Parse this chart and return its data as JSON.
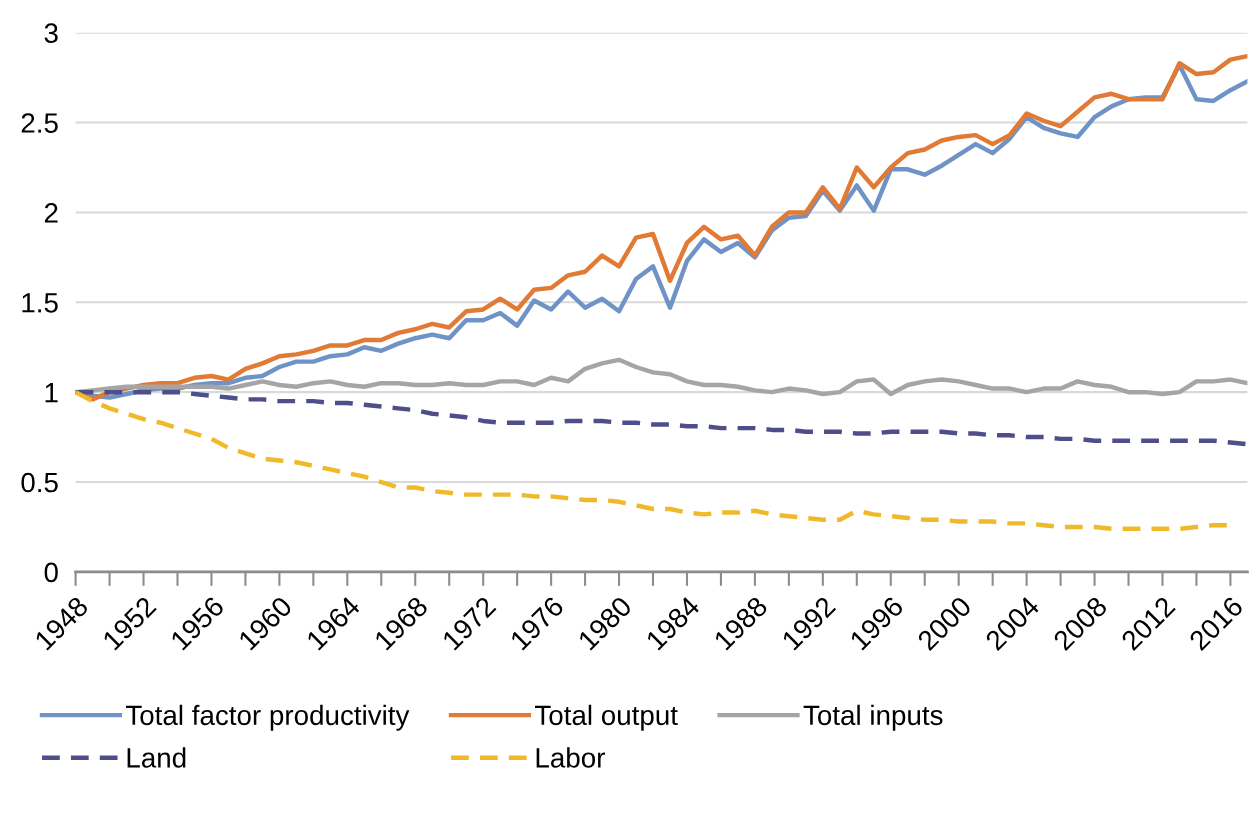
{
  "chart_data": {
    "type": "line",
    "x": [
      1948,
      1949,
      1950,
      1951,
      1952,
      1953,
      1954,
      1955,
      1956,
      1957,
      1958,
      1959,
      1960,
      1961,
      1962,
      1963,
      1964,
      1965,
      1966,
      1967,
      1968,
      1969,
      1970,
      1971,
      1972,
      1973,
      1974,
      1975,
      1976,
      1977,
      1978,
      1979,
      1980,
      1981,
      1982,
      1983,
      1984,
      1985,
      1986,
      1987,
      1988,
      1989,
      1990,
      1991,
      1992,
      1993,
      1994,
      1995,
      1996,
      1997,
      1998,
      1999,
      2000,
      2001,
      2002,
      2003,
      2004,
      2005,
      2006,
      2007,
      2008,
      2009,
      2010,
      2011,
      2012,
      2013,
      2014,
      2015,
      2016,
      2017
    ],
    "series": [
      {
        "name": "Total factor productivity",
        "color": "#6f93c6",
        "values": [
          1.0,
          0.98,
          0.97,
          0.99,
          1.01,
          1.02,
          1.02,
          1.04,
          1.05,
          1.05,
          1.08,
          1.09,
          1.14,
          1.17,
          1.17,
          1.2,
          1.21,
          1.25,
          1.23,
          1.27,
          1.3,
          1.32,
          1.3,
          1.4,
          1.4,
          1.44,
          1.37,
          1.51,
          1.46,
          1.56,
          1.47,
          1.52,
          1.45,
          1.63,
          1.7,
          1.47,
          1.73,
          1.85,
          1.78,
          1.83,
          1.75,
          1.9,
          1.97,
          1.98,
          2.12,
          2.01,
          2.15,
          2.01,
          2.24,
          2.24,
          2.21,
          2.26,
          2.32,
          2.38,
          2.33,
          2.41,
          2.53,
          2.47,
          2.44,
          2.42,
          2.53,
          2.59,
          2.63,
          2.64,
          2.64,
          2.82,
          2.63,
          2.62,
          2.68,
          2.73
        ]
      },
      {
        "name": "Total output",
        "color": "#e07a35",
        "values": [
          1.0,
          0.96,
          1.0,
          1.02,
          1.04,
          1.05,
          1.05,
          1.08,
          1.09,
          1.07,
          1.13,
          1.16,
          1.2,
          1.21,
          1.23,
          1.26,
          1.26,
          1.29,
          1.29,
          1.33,
          1.35,
          1.38,
          1.36,
          1.45,
          1.46,
          1.52,
          1.46,
          1.57,
          1.58,
          1.65,
          1.67,
          1.76,
          1.7,
          1.86,
          1.88,
          1.62,
          1.83,
          1.92,
          1.85,
          1.87,
          1.76,
          1.92,
          2.0,
          2.0,
          2.14,
          2.02,
          2.25,
          2.14,
          2.25,
          2.33,
          2.35,
          2.4,
          2.42,
          2.43,
          2.38,
          2.43,
          2.55,
          2.51,
          2.48,
          2.56,
          2.64,
          2.66,
          2.63,
          2.63,
          2.63,
          2.83,
          2.77,
          2.78,
          2.85,
          2.87
        ]
      },
      {
        "name": "Total inputs",
        "color": "#a5a5a5",
        "values": [
          1.0,
          1.01,
          1.02,
          1.03,
          1.03,
          1.03,
          1.03,
          1.03,
          1.03,
          1.02,
          1.04,
          1.06,
          1.04,
          1.03,
          1.05,
          1.06,
          1.04,
          1.03,
          1.05,
          1.05,
          1.04,
          1.04,
          1.05,
          1.04,
          1.04,
          1.06,
          1.06,
          1.04,
          1.08,
          1.06,
          1.13,
          1.16,
          1.18,
          1.14,
          1.11,
          1.1,
          1.06,
          1.04,
          1.04,
          1.03,
          1.01,
          1.0,
          1.02,
          1.01,
          0.99,
          1.0,
          1.06,
          1.07,
          0.99,
          1.04,
          1.06,
          1.07,
          1.06,
          1.04,
          1.02,
          1.02,
          1.0,
          1.02,
          1.02,
          1.06,
          1.04,
          1.03,
          1.0,
          1.0,
          0.99,
          1.0,
          1.06,
          1.06,
          1.07,
          1.05
        ]
      },
      {
        "name": "Land",
        "color": "#4e4e8a",
        "line_style": "dashed",
        "values": [
          1.0,
          1.0,
          1.0,
          1.0,
          1.0,
          1.0,
          1.0,
          0.99,
          0.98,
          0.97,
          0.96,
          0.96,
          0.95,
          0.95,
          0.95,
          0.94,
          0.94,
          0.93,
          0.92,
          0.91,
          0.9,
          0.88,
          0.87,
          0.86,
          0.84,
          0.83,
          0.83,
          0.83,
          0.83,
          0.84,
          0.84,
          0.84,
          0.83,
          0.83,
          0.82,
          0.82,
          0.81,
          0.81,
          0.8,
          0.8,
          0.8,
          0.79,
          0.79,
          0.78,
          0.78,
          0.78,
          0.77,
          0.77,
          0.78,
          0.78,
          0.78,
          0.78,
          0.77,
          0.77,
          0.76,
          0.76,
          0.75,
          0.75,
          0.74,
          0.74,
          0.73,
          0.73,
          0.73,
          0.73,
          0.73,
          0.73,
          0.73,
          0.73,
          0.72,
          0.71
        ]
      },
      {
        "name": "Labor",
        "color": "#f0b92a",
        "line_style": "dashed",
        "values": [
          1.0,
          0.95,
          0.91,
          0.88,
          0.85,
          0.83,
          0.8,
          0.77,
          0.74,
          0.69,
          0.66,
          0.63,
          0.62,
          0.61,
          0.59,
          0.57,
          0.55,
          0.53,
          0.5,
          0.47,
          0.47,
          0.45,
          0.44,
          0.43,
          0.43,
          0.43,
          0.43,
          0.42,
          0.42,
          0.41,
          0.4,
          0.4,
          0.39,
          0.37,
          0.35,
          0.35,
          0.33,
          0.32,
          0.33,
          0.33,
          0.34,
          0.32,
          0.31,
          0.3,
          0.29,
          0.29,
          0.34,
          0.32,
          0.31,
          0.3,
          0.29,
          0.29,
          0.28,
          0.28,
          0.28,
          0.27,
          0.27,
          0.26,
          0.25,
          0.25,
          0.25,
          0.24,
          0.24,
          0.24,
          0.24,
          0.24,
          0.25,
          0.26,
          0.26,
          null
        ]
      }
    ],
    "xlim": [
      1948,
      2017
    ],
    "xticks": [
      1948,
      {
        "value": 1950,
        "label": null
      },
      1952,
      {
        "value": 1954,
        "label": null
      },
      1956,
      {
        "value": 1958,
        "label": null
      },
      1960,
      {
        "value": 1962,
        "label": null
      },
      1964,
      {
        "value": 1966,
        "label": null
      },
      1968,
      {
        "value": 1970,
        "label": null
      },
      1972,
      {
        "value": 1974,
        "label": null
      },
      1976,
      {
        "value": 1978,
        "label": null
      },
      1980,
      {
        "value": 1982,
        "label": null
      },
      1984,
      {
        "value": 1986,
        "label": null
      },
      1988,
      {
        "value": 1990,
        "label": null
      },
      1992,
      {
        "value": 1994,
        "label": null
      },
      1996,
      {
        "value": 1998,
        "label": null
      },
      2000,
      {
        "value": 2002,
        "label": null
      },
      2004,
      {
        "value": 2006,
        "label": null
      },
      2008,
      {
        "value": 2010,
        "label": null
      },
      2012,
      {
        "value": 2014,
        "label": null
      },
      2016
    ],
    "ylim": [
      0,
      3
    ],
    "yticks": [
      0,
      0.5,
      1,
      1.5,
      2,
      2.5,
      3
    ],
    "grid": "y",
    "legend": "bottom",
    "line_style": "solid",
    "marker": "none"
  }
}
